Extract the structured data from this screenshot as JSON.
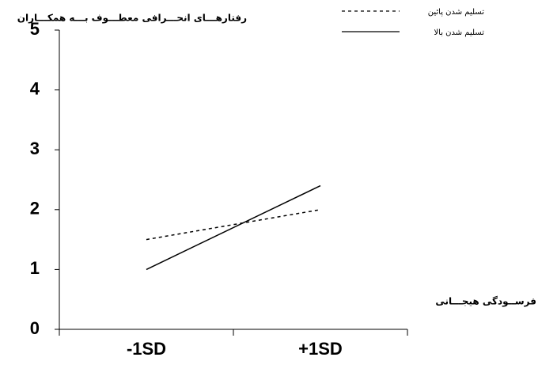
{
  "chart_data": {
    "type": "line",
    "y_label": "رفتارهـــای انحـــرافی معطـــوف بـــه همکـــاران",
    "x_label": "فرســودگی هیجـــانی",
    "categories": [
      "-1SD",
      "+1SD"
    ],
    "series": [
      {
        "name": "تسلیم شدن پائین",
        "color": "#000000",
        "line_style": "dashed",
        "values": [
          1.5,
          2.0
        ]
      },
      {
        "name": "تسلیم شدن بالا",
        "color": "#000000",
        "line_style": "solid",
        "values": [
          1.0,
          2.4
        ]
      }
    ],
    "ylim": [
      0,
      5
    ],
    "yticks": [
      0,
      1,
      2,
      3,
      4,
      5
    ],
    "grid": false
  }
}
